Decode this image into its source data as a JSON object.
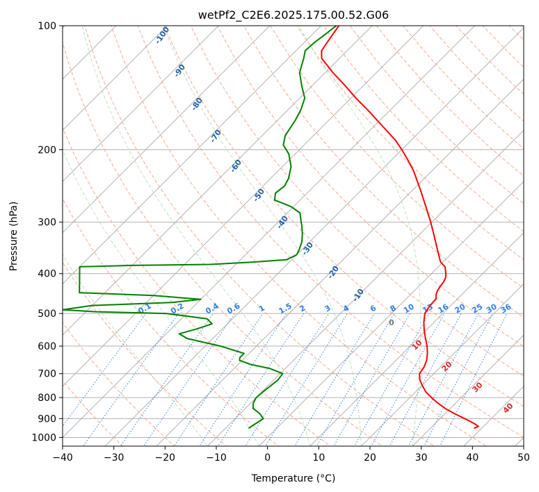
{
  "chart_data": {
    "type": "line",
    "subtype": "skew-t",
    "title": "wetPf2_C2E6.2025.175.00.52.G06",
    "xlabel": "Temperature (°C)",
    "ylabel": "Pressure (hPa)",
    "xlim": [
      -40,
      50
    ],
    "ylim": [
      1050,
      100
    ],
    "y_scale": "log",
    "x_ticks": [
      "−40",
      "−30",
      "−20",
      "−10",
      "0",
      "10",
      "20",
      "30",
      "40",
      "50"
    ],
    "y_ticks": [
      "100",
      "200",
      "300",
      "400",
      "500",
      "600",
      "700",
      "800",
      "900",
      "1000"
    ],
    "grid": true,
    "series": [
      {
        "color": "#ff0000",
        "points": [
          {
            "p": 950,
            "t": 38.5
          },
          {
            "p": 940,
            "t": 39.0
          },
          {
            "p": 925,
            "t": 37.6
          },
          {
            "p": 900,
            "t": 34.8
          },
          {
            "p": 875,
            "t": 31.8
          },
          {
            "p": 850,
            "t": 29.0
          },
          {
            "p": 825,
            "t": 26.5
          },
          {
            "p": 800,
            "t": 24.2
          },
          {
            "p": 775,
            "t": 22.0
          },
          {
            "p": 750,
            "t": 20.2
          },
          {
            "p": 725,
            "t": 18.5
          },
          {
            "p": 700,
            "t": 17.2
          },
          {
            "p": 675,
            "t": 16.8
          },
          {
            "p": 650,
            "t": 16.0
          },
          {
            "p": 625,
            "t": 14.8
          },
          {
            "p": 600,
            "t": 13.3
          },
          {
            "p": 575,
            "t": 11.5
          },
          {
            "p": 550,
            "t": 9.7
          },
          {
            "p": 525,
            "t": 8.0
          },
          {
            "p": 500,
            "t": 6.5
          },
          {
            "p": 480,
            "t": 6.0
          },
          {
            "p": 460,
            "t": 5.8
          },
          {
            "p": 450,
            "t": 5.0
          },
          {
            "p": 440,
            "t": 4.5
          },
          {
            "p": 430,
            "t": 4.2
          },
          {
            "p": 420,
            "t": 4.0
          },
          {
            "p": 410,
            "t": 3.6
          },
          {
            "p": 400,
            "t": 2.8
          },
          {
            "p": 385,
            "t": 1.3
          },
          {
            "p": 375,
            "t": -0.5
          },
          {
            "p": 350,
            "t": -3.5
          },
          {
            "p": 325,
            "t": -6.7
          },
          {
            "p": 300,
            "t": -10.2
          },
          {
            "p": 275,
            "t": -14.2
          },
          {
            "p": 250,
            "t": -18.6
          },
          {
            "p": 225,
            "t": -23.6
          },
          {
            "p": 210,
            "t": -27.3
          },
          {
            "p": 200,
            "t": -30.0
          },
          {
            "p": 190,
            "t": -33.0
          },
          {
            "p": 175,
            "t": -38.5
          },
          {
            "p": 160,
            "t": -44.5
          },
          {
            "p": 150,
            "t": -49.0
          },
          {
            "p": 140,
            "t": -53.5
          },
          {
            "p": 130,
            "t": -58.5
          },
          {
            "p": 120,
            "t": -63.5
          },
          {
            "p": 115,
            "t": -65.0
          },
          {
            "p": 110,
            "t": -65.5
          },
          {
            "p": 105,
            "t": -66.0
          },
          {
            "p": 100,
            "t": -66.5
          }
        ]
      },
      {
        "color": "#008000",
        "points": [
          {
            "p": 950,
            "t": -5.5
          },
          {
            "p": 925,
            "t": -5.0
          },
          {
            "p": 900,
            "t": -4.5
          },
          {
            "p": 875,
            "t": -6.2
          },
          {
            "p": 850,
            "t": -8.5
          },
          {
            "p": 825,
            "t": -9.5
          },
          {
            "p": 800,
            "t": -10.0
          },
          {
            "p": 775,
            "t": -9.8
          },
          {
            "p": 750,
            "t": -9.5
          },
          {
            "p": 725,
            "t": -9.2
          },
          {
            "p": 700,
            "t": -9.5
          },
          {
            "p": 680,
            "t": -13.0
          },
          {
            "p": 665,
            "t": -17.5
          },
          {
            "p": 650,
            "t": -20.5
          },
          {
            "p": 640,
            "t": -21.0
          },
          {
            "p": 625,
            "t": -21.0
          },
          {
            "p": 600,
            "t": -27.0
          },
          {
            "p": 575,
            "t": -35.0
          },
          {
            "p": 560,
            "t": -37.5
          },
          {
            "p": 545,
            "t": -35.0
          },
          {
            "p": 530,
            "t": -33.0
          },
          {
            "p": 515,
            "t": -35.0
          },
          {
            "p": 500,
            "t": -44.0
          },
          {
            "p": 495,
            "t": -58.0
          },
          {
            "p": 490,
            "t": -65.0
          },
          {
            "p": 478,
            "t": -60.0
          },
          {
            "p": 470,
            "t": -45.0
          },
          {
            "p": 462,
            "t": -40.0
          },
          {
            "p": 452,
            "t": -50.0
          },
          {
            "p": 445,
            "t": -65.0
          },
          {
            "p": 385,
            "t": -70.0
          },
          {
            "p": 382,
            "t": -60.0
          },
          {
            "p": 380,
            "t": -45.0
          },
          {
            "p": 378,
            "t": -42.0
          },
          {
            "p": 375,
            "t": -37.0
          },
          {
            "p": 370,
            "t": -31.0
          },
          {
            "p": 360,
            "t": -30.0
          },
          {
            "p": 350,
            "t": -30.5
          },
          {
            "p": 335,
            "t": -31.5
          },
          {
            "p": 320,
            "t": -33.0
          },
          {
            "p": 305,
            "t": -34.8
          },
          {
            "p": 300,
            "t": -35.5
          },
          {
            "p": 285,
            "t": -37.5
          },
          {
            "p": 275,
            "t": -40.5
          },
          {
            "p": 265,
            "t": -45.0
          },
          {
            "p": 255,
            "t": -46.2
          },
          {
            "p": 245,
            "t": -45.8
          },
          {
            "p": 235,
            "t": -46.5
          },
          {
            "p": 220,
            "t": -48.3
          },
          {
            "p": 205,
            "t": -51.2
          },
          {
            "p": 195,
            "t": -54.0
          },
          {
            "p": 185,
            "t": -55.5
          },
          {
            "p": 170,
            "t": -56.5
          },
          {
            "p": 160,
            "t": -57.5
          },
          {
            "p": 150,
            "t": -59.0
          },
          {
            "p": 140,
            "t": -62.0
          },
          {
            "p": 130,
            "t": -65.0
          },
          {
            "p": 120,
            "t": -67.0
          },
          {
            "p": 115,
            "t": -68.2
          },
          {
            "p": 110,
            "t": -68.0
          },
          {
            "p": 105,
            "t": -67.5
          },
          {
            "p": 100,
            "t": -67.0
          }
        ]
      }
    ],
    "mixing_ratio_labels": [
      "0.1",
      "0.2",
      "0.4",
      "0.6",
      "1",
      "1.5",
      "2",
      "3",
      "4",
      "6",
      "8",
      "10",
      "13",
      "16",
      "20",
      "25",
      "30",
      "36"
    ],
    "dry_adiabat_labels": [
      "-100",
      "-90",
      "-80",
      "-70",
      "-60",
      "-50",
      "-40",
      "-30",
      "-20",
      "-10"
    ],
    "moist_adiabat_labels": [
      "10",
      "20",
      "30",
      "40"
    ],
    "zero_label": "0"
  }
}
